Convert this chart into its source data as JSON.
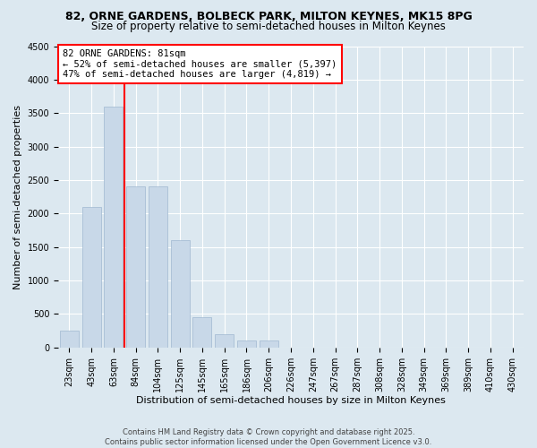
{
  "title_line1": "82, ORNE GARDENS, BOLBECK PARK, MILTON KEYNES, MK15 8PG",
  "title_line2": "Size of property relative to semi-detached houses in Milton Keynes",
  "xlabel": "Distribution of semi-detached houses by size in Milton Keynes",
  "ylabel": "Number of semi-detached properties",
  "footer_line1": "Contains HM Land Registry data © Crown copyright and database right 2025.",
  "footer_line2": "Contains public sector information licensed under the Open Government Licence v3.0.",
  "annotation_title": "82 ORNE GARDENS: 81sqm",
  "annotation_line1": "← 52% of semi-detached houses are smaller (5,397)",
  "annotation_line2": "47% of semi-detached houses are larger (4,819) →",
  "bar_color": "#c8d8e8",
  "bar_edge_color": "#a0b8d0",
  "vline_color": "red",
  "annotation_box_edge": "red",
  "background_color": "#dce8f0",
  "categories": [
    "23sqm",
    "43sqm",
    "63sqm",
    "84sqm",
    "104sqm",
    "125sqm",
    "145sqm",
    "165sqm",
    "186sqm",
    "206sqm",
    "226sqm",
    "247sqm",
    "267sqm",
    "287sqm",
    "308sqm",
    "328sqm",
    "349sqm",
    "369sqm",
    "389sqm",
    "410sqm",
    "430sqm"
  ],
  "values": [
    250,
    2100,
    3600,
    2400,
    2400,
    1600,
    450,
    200,
    100,
    100,
    0,
    0,
    0,
    0,
    0,
    0,
    0,
    0,
    0,
    0,
    0
  ],
  "ylim": [
    0,
    4500
  ],
  "yticks": [
    0,
    500,
    1000,
    1500,
    2000,
    2500,
    3000,
    3500,
    4000,
    4500
  ],
  "vline_x": 2.5,
  "grid_color": "#ffffff",
  "title_fontsize": 9,
  "subtitle_fontsize": 8.5,
  "axis_label_fontsize": 8,
  "tick_fontsize": 7,
  "annotation_fontsize": 7.5,
  "ylabel_fontsize": 8
}
